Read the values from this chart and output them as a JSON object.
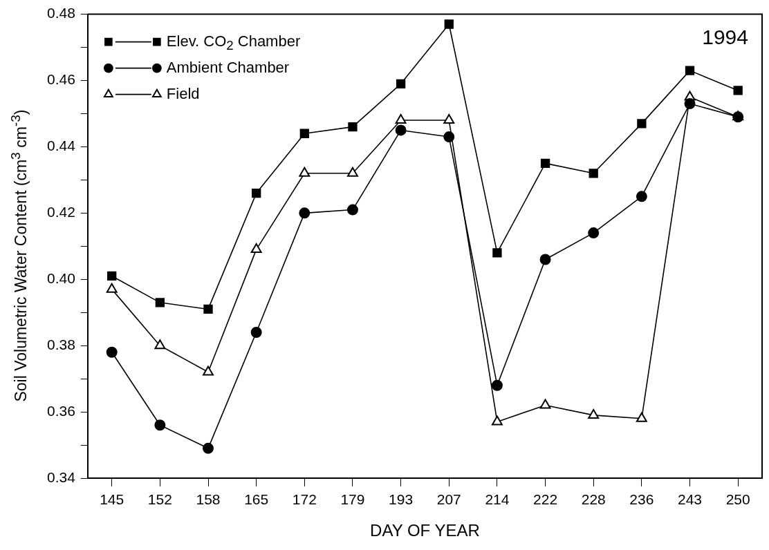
{
  "chart_data": {
    "type": "line",
    "xlabel": "DAY OF YEAR",
    "ylabel": "Soil Volumetric Water Content (cm$^{3}$ cm$^{-3}$)",
    "categories": [
      "145",
      "152",
      "158",
      "165",
      "172",
      "179",
      "193",
      "207",
      "214",
      "222",
      "228",
      "236",
      "243",
      "250"
    ],
    "ylim": [
      0.34,
      0.48
    ],
    "yticks": [
      0.34,
      {
        "value": 0.35,
        "label": null
      },
      0.36,
      {
        "value": 0.37,
        "label": null
      },
      0.38,
      {
        "value": 0.39,
        "label": null
      },
      {
        "value": 0.4,
        "label": "0.40"
      },
      {
        "value": 0.41,
        "label": null
      },
      0.42,
      {
        "value": 0.43,
        "label": null
      },
      0.44,
      {
        "value": 0.45,
        "label": null
      },
      0.46,
      {
        "value": 0.47,
        "label": null
      },
      0.48
    ],
    "grid": false,
    "legend": "top left",
    "line_style": "solid",
    "annotations": [
      "1994"
    ],
    "series": [
      {
        "name": "Elev. CO$_{2}$ Chamber",
        "color": "#000000",
        "marker": "square",
        "values": [
          0.401,
          0.393,
          0.391,
          0.426,
          0.444,
          0.446,
          0.459,
          0.477,
          0.408,
          0.435,
          0.432,
          0.447,
          0.463,
          0.457
        ]
      },
      {
        "name": "Ambient Chamber",
        "color": "#000000",
        "marker": "circle",
        "values": [
          0.378,
          0.356,
          0.349,
          0.384,
          0.42,
          0.421,
          0.445,
          0.443,
          0.368,
          0.406,
          0.414,
          0.425,
          0.453,
          0.449
        ]
      },
      {
        "name": "Field",
        "color": "#000000",
        "marker": "triangle",
        "values": [
          0.397,
          0.38,
          0.372,
          0.409,
          0.432,
          0.432,
          0.448,
          0.448,
          0.357,
          0.362,
          0.359,
          0.358,
          0.455,
          0.449
        ]
      }
    ]
  }
}
